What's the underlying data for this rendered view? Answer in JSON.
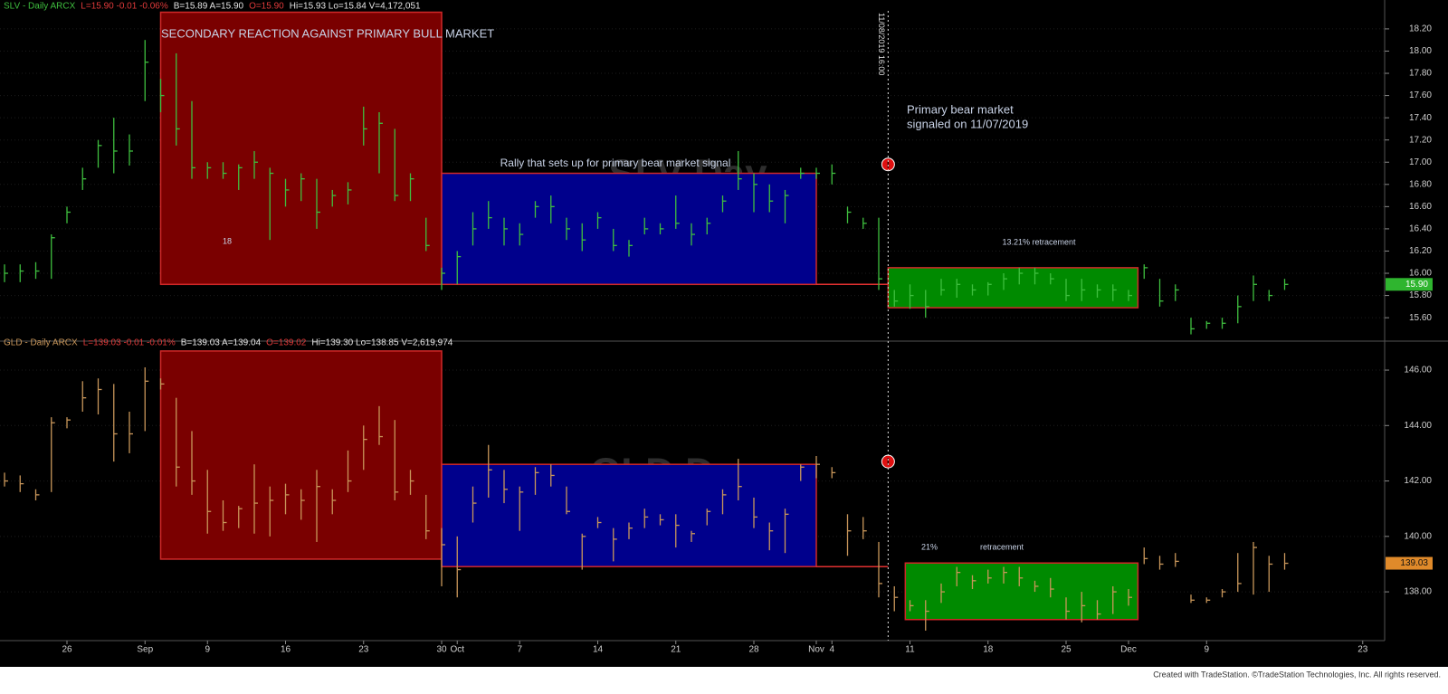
{
  "chart_data": [
    {
      "type": "hlc",
      "header": [
        {
          "text": "SLV - Daily  ARCX",
          "color": "#3fbf3f"
        },
        {
          "text": "L=15.90  -0.01  -0.06%",
          "color": "#e03a3a"
        },
        {
          "text": "B=15.89  A=15.90",
          "color": "#e6e6e6"
        },
        {
          "text": "O=15.90",
          "color": "#e03a3a"
        },
        {
          "text": "Hi=15.93  Lo=15.84  V=4,172,051",
          "color": "#e6e6e6"
        }
      ],
      "watermark": "SLV Day",
      "color": "#3fbf3f",
      "high": [
        16.08,
        16.08,
        16.1,
        16.35,
        16.6,
        16.95,
        17.2,
        17.4,
        17.25,
        18.1,
        17.75,
        17.98,
        17.55,
        17.0,
        17.0,
        16.98,
        17.1,
        16.95,
        16.85,
        16.9,
        16.85,
        16.75,
        16.82,
        17.5,
        17.45,
        17.3,
        16.9,
        16.5,
        16.05,
        16.2,
        16.55,
        16.65,
        16.5,
        16.45,
        16.65,
        16.7,
        16.5,
        16.45,
        16.55,
        16.4,
        16.3,
        16.5,
        16.45,
        16.7,
        16.45,
        16.5,
        16.7,
        17.1,
        16.9,
        16.8,
        16.75,
        16.95,
        16.95,
        16.98,
        16.6,
        16.5,
        16.5,
        15.85,
        15.9,
        15.85,
        15.95,
        15.95,
        15.9,
        15.92,
        16.0,
        16.05,
        16.05,
        16.0,
        15.95,
        15.95,
        15.9,
        15.9,
        15.85,
        16.08,
        15.95,
        15.9,
        15.6,
        15.57,
        15.6,
        15.8,
        15.98,
        15.85,
        15.95,
        null,
        null,
        null,
        null,
        null,
        null
      ],
      "low": [
        15.92,
        15.92,
        15.95,
        15.95,
        16.45,
        16.75,
        16.95,
        16.9,
        16.97,
        17.55,
        17.45,
        17.15,
        16.85,
        16.85,
        16.85,
        16.75,
        16.85,
        16.3,
        16.6,
        16.65,
        16.4,
        16.6,
        16.62,
        17.15,
        16.9,
        16.65,
        16.65,
        16.2,
        15.85,
        15.9,
        16.25,
        16.4,
        16.25,
        16.25,
        16.5,
        16.45,
        16.3,
        16.2,
        16.4,
        16.2,
        16.15,
        16.35,
        16.35,
        16.4,
        16.25,
        16.35,
        16.55,
        16.75,
        16.55,
        16.55,
        16.45,
        16.85,
        16.85,
        16.8,
        16.45,
        16.4,
        15.85,
        15.7,
        15.68,
        15.6,
        15.8,
        15.78,
        15.8,
        15.8,
        15.85,
        15.9,
        15.9,
        15.9,
        15.75,
        15.75,
        15.78,
        15.75,
        15.75,
        15.95,
        15.7,
        15.75,
        15.45,
        15.5,
        15.5,
        15.55,
        15.75,
        15.75,
        15.85,
        null,
        null,
        null,
        null,
        null,
        null
      ],
      "close": [
        16.0,
        16.02,
        16.02,
        16.32,
        16.55,
        16.85,
        17.15,
        17.1,
        17.1,
        17.9,
        17.6,
        17.3,
        16.95,
        16.95,
        16.9,
        16.95,
        17.0,
        16.9,
        16.75,
        16.85,
        16.55,
        16.7,
        16.75,
        17.3,
        17.35,
        16.7,
        16.85,
        16.25,
        16.0,
        16.15,
        16.4,
        16.5,
        16.4,
        16.35,
        16.6,
        16.6,
        16.4,
        16.3,
        16.5,
        16.25,
        16.25,
        16.4,
        16.4,
        16.45,
        16.35,
        16.45,
        16.65,
        16.85,
        16.8,
        16.65,
        16.7,
        16.9,
        16.9,
        16.9,
        16.55,
        16.45,
        15.95,
        15.75,
        15.8,
        15.7,
        15.85,
        15.9,
        15.85,
        15.9,
        15.95,
        16.0,
        16.0,
        15.95,
        15.8,
        15.85,
        15.85,
        15.85,
        15.8,
        16.05,
        15.75,
        15.85,
        15.5,
        15.55,
        15.55,
        15.7,
        15.9,
        15.8,
        15.9,
        null,
        null,
        null,
        null,
        null,
        null
      ],
      "ylim": [
        15.43,
        18.46
      ],
      "yticks": [
        {
          "value": 15.6,
          "label": "15.60"
        },
        {
          "value": 15.8,
          "label": "15.80"
        },
        {
          "value": 16.0,
          "label": "16.00"
        },
        {
          "value": 16.2,
          "label": "16.20"
        },
        {
          "value": 16.4,
          "label": "16.40"
        },
        {
          "value": 16.6,
          "label": "16.60"
        },
        {
          "value": 16.8,
          "label": "16.80"
        },
        {
          "value": 17.0,
          "label": "17.00"
        },
        {
          "value": 17.2,
          "label": "17.20"
        },
        {
          "value": 17.4,
          "label": "17.40"
        },
        {
          "value": 17.6,
          "label": "17.60"
        },
        {
          "value": 17.8,
          "label": "17.80"
        },
        {
          "value": 18.0,
          "label": "18.00"
        },
        {
          "value": 18.2,
          "label": "18.20"
        }
      ],
      "last": {
        "value": 15.9,
        "label": "15.90",
        "color": "#2fb52f"
      },
      "zones": [
        {
          "x": [
            10,
            28
          ],
          "y": [
            15.9,
            18.35
          ],
          "color": "#7a0000"
        },
        {
          "x": [
            28,
            52
          ],
          "y": [
            15.9,
            16.9
          ],
          "color": "#00008c"
        },
        {
          "x": [
            56.6,
            72.6
          ],
          "y": [
            15.69,
            16.05
          ],
          "color": "#008a00"
        }
      ],
      "levels": [
        {
          "x": [
            52,
            56.6
          ],
          "y": 15.9,
          "color": "#e03030"
        }
      ],
      "signal": {
        "x": 56.6,
        "y": 16.98
      },
      "annotations": [
        "SECONDARY REACTION AGAINST PRIMARY BULL MARKET",
        "18",
        "Rally that sets up for primary bear market signal",
        "Primary bear market",
        "signaled on 11/07/2019",
        "13.21% retracement"
      ]
    },
    {
      "type": "hlc",
      "header": [
        {
          "text": "GLD - Daily  ARCX",
          "color": "#c8965a"
        },
        {
          "text": "L=139.03  -0.01  -0.01%",
          "color": "#e03a3a"
        },
        {
          "text": "B=139.03  A=139.04",
          "color": "#e6e6e6"
        },
        {
          "text": "O=139.02",
          "color": "#e03a3a"
        },
        {
          "text": "Hi=139.30  Lo=138.85  V=2,619,974",
          "color": "#e6e6e6"
        }
      ],
      "watermark": "GLD Day",
      "color": "#c8965a",
      "high": [
        142.3,
        142.2,
        141.7,
        144.3,
        144.3,
        145.6,
        145.7,
        145.5,
        144.5,
        146.1,
        145.7,
        145.0,
        143.8,
        142.4,
        141.3,
        141.1,
        142.6,
        141.8,
        141.9,
        141.7,
        142.4,
        141.7,
        143.1,
        144.0,
        144.7,
        144.2,
        142.4,
        141.5,
        140.3,
        140.0,
        141.8,
        143.3,
        142.4,
        141.8,
        142.5,
        142.6,
        141.8,
        140.1,
        140.7,
        140.3,
        140.5,
        141.0,
        140.8,
        140.8,
        140.2,
        141.0,
        141.7,
        142.8,
        141.4,
        140.5,
        141.0,
        142.6,
        142.9,
        142.5,
        140.8,
        140.7,
        139.8,
        138.2,
        137.7,
        137.7,
        138.3,
        138.9,
        138.6,
        138.8,
        138.9,
        138.9,
        138.4,
        138.5,
        137.8,
        138.0,
        137.7,
        138.2,
        138.1,
        139.6,
        139.3,
        139.4,
        137.9,
        137.8,
        138.1,
        139.4,
        139.8,
        139.3,
        139.4,
        null,
        null,
        null,
        null,
        null,
        null
      ],
      "low": [
        141.8,
        141.6,
        141.3,
        141.6,
        143.9,
        144.5,
        144.4,
        142.7,
        143.0,
        143.8,
        145.3,
        141.8,
        141.5,
        140.1,
        140.2,
        140.3,
        140.1,
        140.0,
        140.8,
        140.6,
        139.8,
        140.8,
        141.6,
        142.4,
        143.3,
        141.3,
        141.5,
        139.9,
        138.2,
        137.8,
        140.5,
        141.4,
        141.2,
        140.2,
        141.5,
        141.8,
        140.8,
        138.8,
        140.3,
        139.1,
        139.9,
        140.3,
        140.4,
        139.6,
        139.8,
        140.4,
        140.8,
        141.3,
        140.3,
        139.5,
        139.4,
        142.0,
        142.1,
        142.1,
        139.3,
        139.9,
        137.8,
        137.3,
        137.3,
        136.6,
        137.6,
        138.2,
        138.1,
        138.3,
        138.3,
        138.2,
        138.0,
        137.8,
        137.0,
        136.9,
        137.0,
        137.2,
        137.5,
        139.0,
        138.8,
        138.9,
        137.6,
        137.6,
        137.8,
        138.0,
        137.9,
        138.0,
        138.8,
        null,
        null,
        null,
        null,
        null,
        null
      ],
      "close": [
        142.0,
        141.9,
        141.5,
        144.1,
        144.2,
        145.0,
        145.3,
        143.7,
        143.7,
        145.6,
        145.5,
        142.5,
        142.0,
        140.9,
        140.5,
        141.0,
        141.2,
        141.3,
        141.5,
        141.3,
        141.8,
        141.3,
        142.0,
        143.5,
        143.6,
        141.6,
        142.0,
        140.2,
        139.7,
        138.8,
        141.2,
        142.4,
        141.7,
        141.6,
        142.3,
        142.2,
        140.9,
        140.0,
        140.5,
        139.9,
        140.3,
        140.7,
        140.6,
        140.4,
        140.1,
        140.9,
        141.5,
        141.8,
        140.7,
        140.2,
        140.8,
        142.5,
        142.6,
        142.3,
        140.2,
        140.2,
        138.3,
        137.8,
        137.5,
        137.3,
        138.0,
        138.7,
        138.4,
        138.5,
        138.7,
        138.5,
        138.2,
        138.1,
        137.3,
        137.5,
        137.2,
        138.0,
        137.8,
        139.2,
        139.0,
        139.1,
        137.7,
        137.7,
        138.0,
        138.3,
        139.6,
        139.0,
        139.03,
        null,
        null,
        null,
        null,
        null,
        null
      ],
      "ylim": [
        136.24,
        146.85
      ],
      "yticks": [
        {
          "value": 138,
          "label": "138.00"
        },
        {
          "value": 140,
          "label": "140.00"
        },
        {
          "value": 142,
          "label": "142.00"
        },
        {
          "value": 144,
          "label": "144.00"
        },
        {
          "value": 146,
          "label": "146.00"
        }
      ],
      "last": {
        "value": 139.03,
        "label": "139.03",
        "color": "#e08a2a"
      },
      "zones": [
        {
          "x": [
            10,
            28
          ],
          "y": [
            139.18,
            146.69
          ],
          "color": "#7a0000"
        },
        {
          "x": [
            28,
            52
          ],
          "y": [
            138.91,
            142.6
          ],
          "color": "#00008c"
        },
        {
          "x": [
            57.7,
            72.6
          ],
          "y": [
            137.0,
            139.04
          ],
          "color": "#008a00"
        }
      ],
      "levels": [
        {
          "x": [
            52,
            56.6
          ],
          "y": 138.91,
          "color": "#e03030"
        }
      ],
      "signal": {
        "x": 56.6,
        "y": 142.7
      },
      "annotations": [
        "21%",
        "retracement"
      ],
      "categories": [
        null,
        null,
        null,
        null,
        "26",
        null,
        null,
        null,
        null,
        "Sep",
        null,
        null,
        null,
        "9",
        null,
        null,
        null,
        null,
        "16",
        null,
        null,
        null,
        null,
        "23",
        null,
        null,
        null,
        null,
        "30",
        "Oct",
        null,
        null,
        null,
        "7",
        null,
        null,
        null,
        null,
        "14",
        null,
        null,
        null,
        null,
        "21",
        null,
        null,
        null,
        null,
        "28",
        null,
        null,
        null,
        "Nov",
        "4",
        null,
        null,
        null,
        null,
        "11",
        null,
        null,
        null,
        null,
        "18",
        null,
        null,
        null,
        null,
        "25",
        null,
        null,
        null,
        "Dec",
        null,
        null,
        null,
        null,
        "9",
        null,
        null,
        null,
        null,
        null,
        null,
        null,
        null,
        null,
        "23",
        null
      ]
    }
  ],
  "cursor": {
    "x": 56.6,
    "label": "11/08/2019 16:00"
  },
  "footer": "Created with TradeStation. ©TradeStation Technologies, Inc. All rights reserved."
}
